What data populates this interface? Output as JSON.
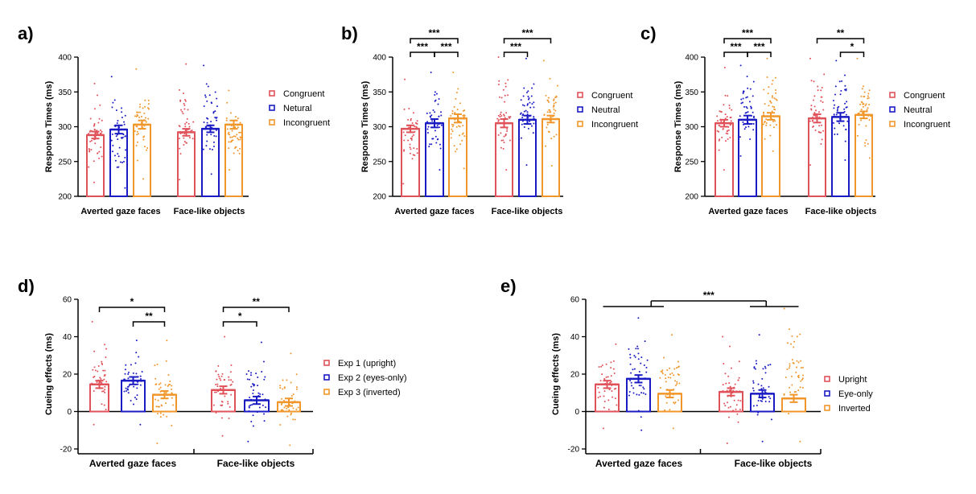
{
  "colors": {
    "congruent": "#e0525a",
    "neutral": "#1b1bc4",
    "incongruent": "#f0962a",
    "axis": "#000000"
  },
  "chart_data": [
    {
      "panel": "a)",
      "type": "bar",
      "ylabel": "Response Times (ms)",
      "ylim": [
        200,
        400
      ],
      "yticks": [
        200,
        250,
        300,
        350,
        400
      ],
      "categories": [
        "Averted gaze faces",
        "Face-like objects"
      ],
      "legend": "right",
      "series": [
        {
          "name": "Congruent",
          "color_key": "congruent",
          "values": [
            288,
            292
          ],
          "sem": [
            5,
            5
          ]
        },
        {
          "name": "Netural",
          "color_key": "neutral",
          "values": [
            296,
            297
          ],
          "sem": [
            6,
            5
          ]
        },
        {
          "name": "Incongruent",
          "color_key": "incongruent",
          "values": [
            303,
            303
          ],
          "sem": [
            6,
            6
          ]
        }
      ],
      "points_range": [
        [
          [
            220,
            362
          ],
          [
            212,
            372
          ],
          [
            225,
            383
          ]
        ],
        [
          [
            224,
            390
          ],
          [
            232,
            388
          ],
          [
            238,
            352
          ]
        ]
      ],
      "significance": []
    },
    {
      "panel": "b)",
      "type": "bar",
      "ylabel": "Response Times (ms)",
      "ylim": [
        200,
        400
      ],
      "yticks": [
        200,
        250,
        300,
        350,
        400
      ],
      "categories": [
        "Averted gaze faces",
        "Face-like objects"
      ],
      "legend": "right",
      "series": [
        {
          "name": "Congruent",
          "color_key": "congruent",
          "values": [
            297,
            305
          ],
          "sem": [
            5,
            6
          ]
        },
        {
          "name": "Neutral",
          "color_key": "neutral",
          "values": [
            305,
            310
          ],
          "sem": [
            6,
            6
          ]
        },
        {
          "name": "Incongruent",
          "color_key": "incongruent",
          "values": [
            312,
            311
          ],
          "sem": [
            6,
            5
          ]
        }
      ],
      "points_range": [
        [
          [
            218,
            368
          ],
          [
            238,
            378
          ],
          [
            240,
            378
          ]
        ],
        [
          [
            238,
            400
          ],
          [
            245,
            398
          ],
          [
            244,
            395
          ]
        ]
      ],
      "significance": [
        {
          "group": 0,
          "from": 0,
          "to": 1,
          "level": 1,
          "stars": "***"
        },
        {
          "group": 0,
          "from": 1,
          "to": 2,
          "level": 1,
          "stars": "***"
        },
        {
          "group": 0,
          "from": 0,
          "to": 2,
          "level": 2,
          "stars": "***"
        },
        {
          "group": 1,
          "from": 0,
          "to": 1,
          "level": 1,
          "stars": "***"
        },
        {
          "group": 1,
          "from": 0,
          "to": 2,
          "level": 2,
          "stars": "***"
        }
      ]
    },
    {
      "panel": "c)",
      "type": "bar",
      "ylabel": "Response Times (ms)",
      "ylim": [
        200,
        400
      ],
      "yticks": [
        200,
        250,
        300,
        350,
        400
      ],
      "categories": [
        "Averted gaze faces",
        "Face-like objects"
      ],
      "legend": "right",
      "series": [
        {
          "name": "Congruent",
          "color_key": "congruent",
          "values": [
            305,
            312
          ],
          "sem": [
            5,
            6
          ]
        },
        {
          "name": "Neutral",
          "color_key": "neutral",
          "values": [
            310,
            314
          ],
          "sem": [
            6,
            6
          ]
        },
        {
          "name": "Incongruent",
          "color_key": "incongruent",
          "values": [
            315,
            317
          ],
          "sem": [
            5,
            5
          ]
        }
      ],
      "points_range": [
        [
          [
            238,
            385
          ],
          [
            258,
            388
          ],
          [
            265,
            398
          ]
        ],
        [
          [
            245,
            398
          ],
          [
            252,
            395
          ],
          [
            255,
            398
          ]
        ]
      ],
      "significance": [
        {
          "group": 0,
          "from": 0,
          "to": 1,
          "level": 1,
          "stars": "***"
        },
        {
          "group": 0,
          "from": 1,
          "to": 2,
          "level": 1,
          "stars": "***"
        },
        {
          "group": 0,
          "from": 0,
          "to": 2,
          "level": 2,
          "stars": "***"
        },
        {
          "group": 1,
          "from": 1,
          "to": 2,
          "level": 1,
          "stars": "*"
        },
        {
          "group": 1,
          "from": 0,
          "to": 2,
          "level": 2,
          "stars": "**"
        }
      ]
    },
    {
      "panel": "d)",
      "type": "bar",
      "ylabel": "Cueing effects (ms)",
      "ylim": [
        -20,
        60
      ],
      "yticks": [
        -20,
        0,
        20,
        40,
        60
      ],
      "categories": [
        "Averted gaze faces",
        "Face-like objects"
      ],
      "legend": "right",
      "series": [
        {
          "name": "Exp 1 (upright)",
          "color_key": "congruent",
          "values": [
            14.5,
            11.5
          ],
          "sem": [
            2,
            2
          ]
        },
        {
          "name": "Exp 2 (eyes-only)",
          "color_key": "neutral",
          "values": [
            16.5,
            6
          ],
          "sem": [
            2,
            2
          ]
        },
        {
          "name": "Exp 3 (inverted)",
          "color_key": "incongruent",
          "values": [
            9,
            5
          ],
          "sem": [
            2,
            2
          ]
        }
      ],
      "points_range": [
        [
          [
            -7,
            48
          ],
          [
            -7,
            38
          ],
          [
            -17,
            38
          ]
        ],
        [
          [
            -13,
            40
          ],
          [
            -16,
            37
          ],
          [
            -18,
            31
          ]
        ]
      ],
      "significance": [
        {
          "group": 0,
          "from": 1,
          "to": 2,
          "level": 1,
          "stars": "**"
        },
        {
          "group": 0,
          "from": 0,
          "to": 2,
          "level": 2,
          "stars": "*"
        },
        {
          "group": 1,
          "from": 0,
          "to": 1,
          "level": 1,
          "stars": "*"
        },
        {
          "group": 1,
          "from": 0,
          "to": 2,
          "level": 2,
          "stars": "**"
        }
      ]
    },
    {
      "panel": "e)",
      "type": "bar",
      "ylabel": "Cueing effects (ms)",
      "ylim": [
        -20,
        60
      ],
      "yticks": [
        -20,
        0,
        20,
        40,
        60
      ],
      "categories": [
        "Averted gaze faces",
        "Face-like objects"
      ],
      "legend": "right",
      "series": [
        {
          "name": "Upright",
          "color_key": "congruent",
          "values": [
            14.5,
            10.5
          ],
          "sem": [
            2,
            2
          ]
        },
        {
          "name": "Eye-only",
          "color_key": "neutral",
          "values": [
            17.5,
            9.5
          ],
          "sem": [
            2,
            2
          ]
        },
        {
          "name": "Inverted",
          "color_key": "incongruent",
          "values": [
            9.5,
            7
          ],
          "sem": [
            2,
            2
          ]
        }
      ],
      "points_range": [
        [
          [
            -9,
            36
          ],
          [
            -10,
            50
          ],
          [
            -9,
            41
          ]
        ],
        [
          [
            -17,
            40
          ],
          [
            -16,
            41
          ],
          [
            -16,
            55
          ]
        ]
      ],
      "significance": [
        {
          "between_groups": true,
          "stars": "***"
        }
      ]
    }
  ]
}
